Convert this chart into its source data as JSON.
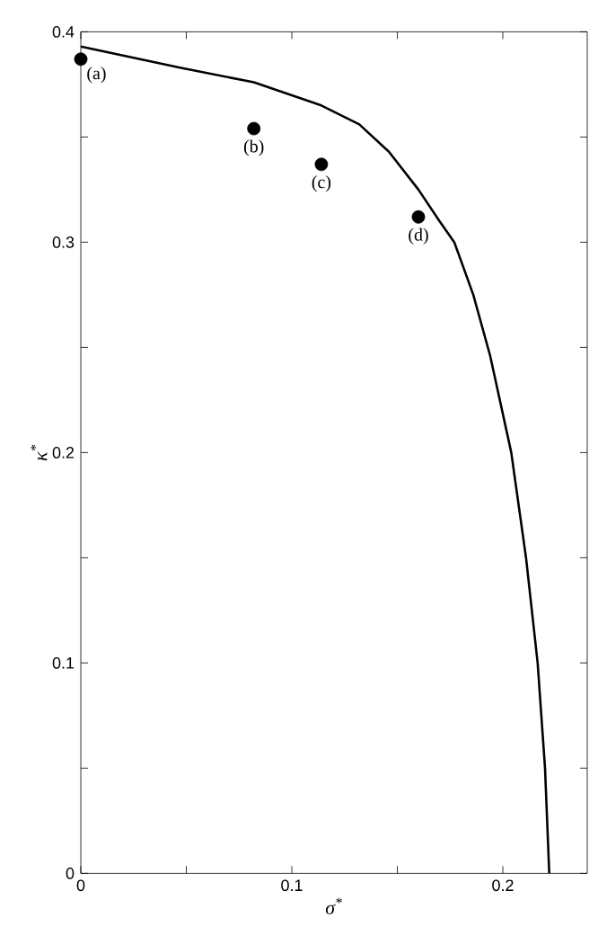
{
  "chart_data": {
    "type": "scatter",
    "xlabel": "σ$^{*}$",
    "ylabel": "κ$^{*}$",
    "xlim": [
      0,
      0.24
    ],
    "ylim": [
      0,
      0.4
    ],
    "xticks": [
      0,
      {
        "value": 0.05,
        "label": null
      },
      0.1,
      {
        "value": 0.15,
        "label": null
      },
      0.2
    ],
    "yticks": [
      0,
      {
        "value": 0.05,
        "label": null
      },
      0.1,
      {
        "value": 0.15,
        "label": null
      },
      0.2,
      {
        "value": 0.25,
        "label": null
      },
      0.3,
      {
        "value": 0.35,
        "label": null
      },
      0.4
    ],
    "series": [
      {
        "type": "line",
        "color": "#000000",
        "marker": "none",
        "line_style": "solid",
        "x": [
          0,
          0.047,
          0.082,
          0.114,
          0.132,
          0.146,
          0.16,
          0.17,
          0.177,
          0.186,
          0.194,
          0.204,
          0.211,
          0.2165,
          0.22,
          0.222
        ],
        "values": [
          0.393,
          0.383,
          0.376,
          0.365,
          0.356,
          0.343,
          0.325,
          0.31,
          0.3,
          0.275,
          0.246,
          0.2,
          0.15,
          0.1,
          0.05,
          0
        ]
      },
      {
        "color": "#000000",
        "marker": "circle",
        "x": [
          0,
          0.082,
          0.114,
          0.16
        ],
        "values": [
          0.387,
          0.354,
          0.337,
          0.312
        ]
      }
    ],
    "annotations": [
      {
        "text": "(a)",
        "x": 0,
        "y": 0.387
      },
      {
        "text": "(b)",
        "x": 0.082,
        "y": 0.354
      },
      {
        "text": "(c)",
        "x": 0.114,
        "y": 0.337
      },
      {
        "text": "(d)",
        "x": 0.16,
        "y": 0.312
      }
    ]
  }
}
